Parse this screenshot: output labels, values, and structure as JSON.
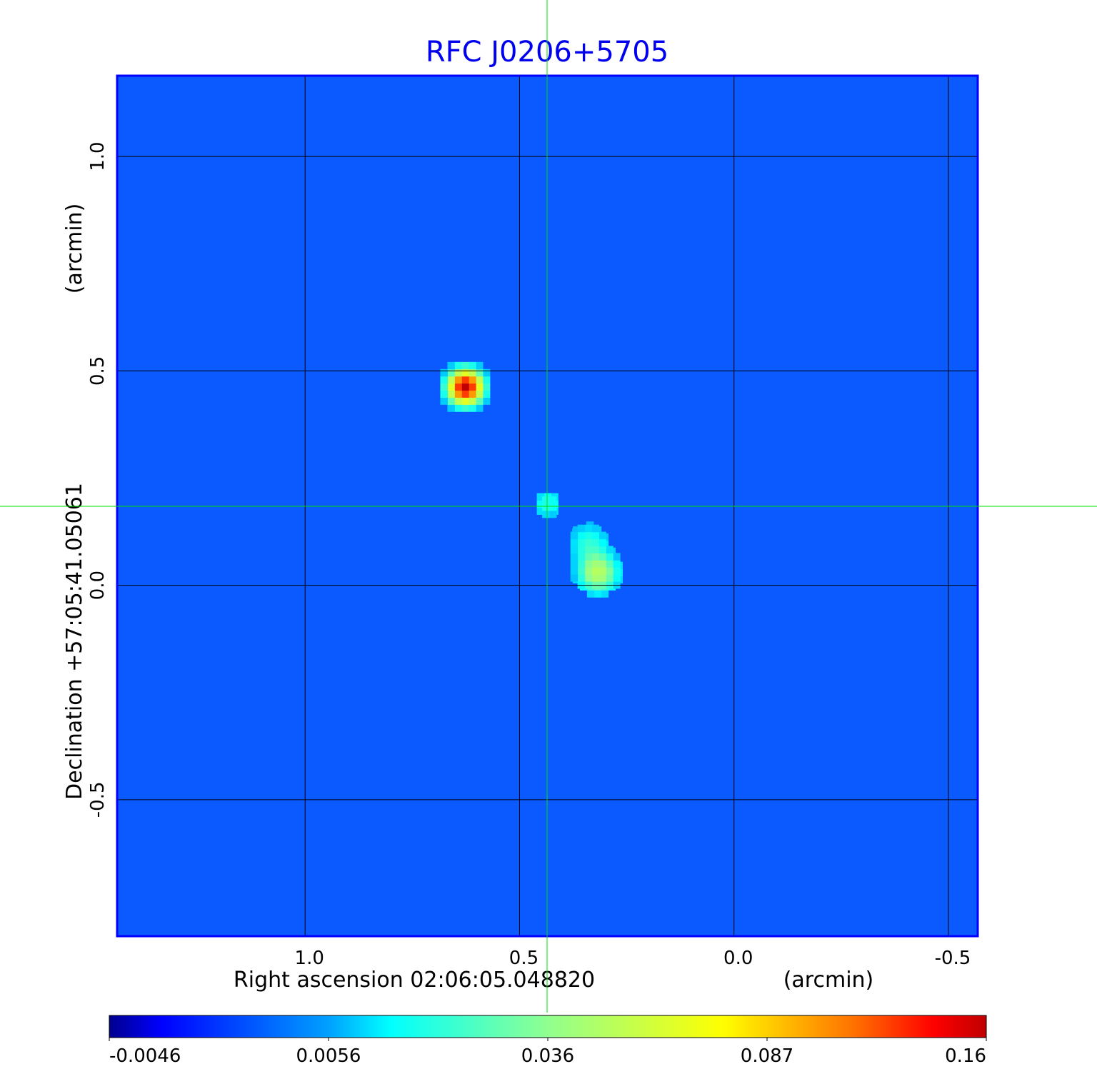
{
  "chart_data": {
    "type": "heatmap",
    "title": "RFC J0206+5705",
    "xlabel": "Right ascension  02:06:05.048820",
    "xunit": "(arcmin)",
    "ylabel": "Declination  +57:05:41.05061",
    "yunit": "(arcmin)",
    "xlim": [
      1.44,
      -0.57
    ],
    "ylim": [
      -0.82,
      1.19
    ],
    "xticks": [
      1.0,
      0.5,
      0.0,
      -0.5
    ],
    "xtick_labels": [
      "1.0",
      "0.5",
      "0.0",
      "-0.5"
    ],
    "yticks": [
      1.0,
      0.5,
      0.0,
      -0.5
    ],
    "ytick_labels": [
      "1.0",
      "0.5",
      "0.0",
      "-0.5"
    ],
    "grid": true,
    "crosshair": {
      "x": 0.435,
      "y": 0.187,
      "color": "#00e000"
    },
    "colormap": "jet",
    "colorbar": {
      "placement": "bottom",
      "ticks": [
        -0.0046,
        0.0056,
        0.036,
        0.087,
        0.16
      ],
      "tick_labels": [
        "-0.0046",
        "0.0056",
        "0.036",
        "0.087",
        "0.16"
      ]
    },
    "background_level": 0.0,
    "features": [
      {
        "x": 0.627,
        "y": 0.463,
        "peak": 0.16,
        "sigma": 0.025
      },
      {
        "x": 0.435,
        "y": 0.19,
        "peak": 0.02,
        "sigma": 0.022
      },
      {
        "x": 0.318,
        "y": 0.03,
        "peak": 0.05,
        "sigma": 0.03
      },
      {
        "x": 0.34,
        "y": 0.1,
        "peak": 0.02,
        "sigma": 0.03
      }
    ],
    "title_color": "#0000ee"
  }
}
